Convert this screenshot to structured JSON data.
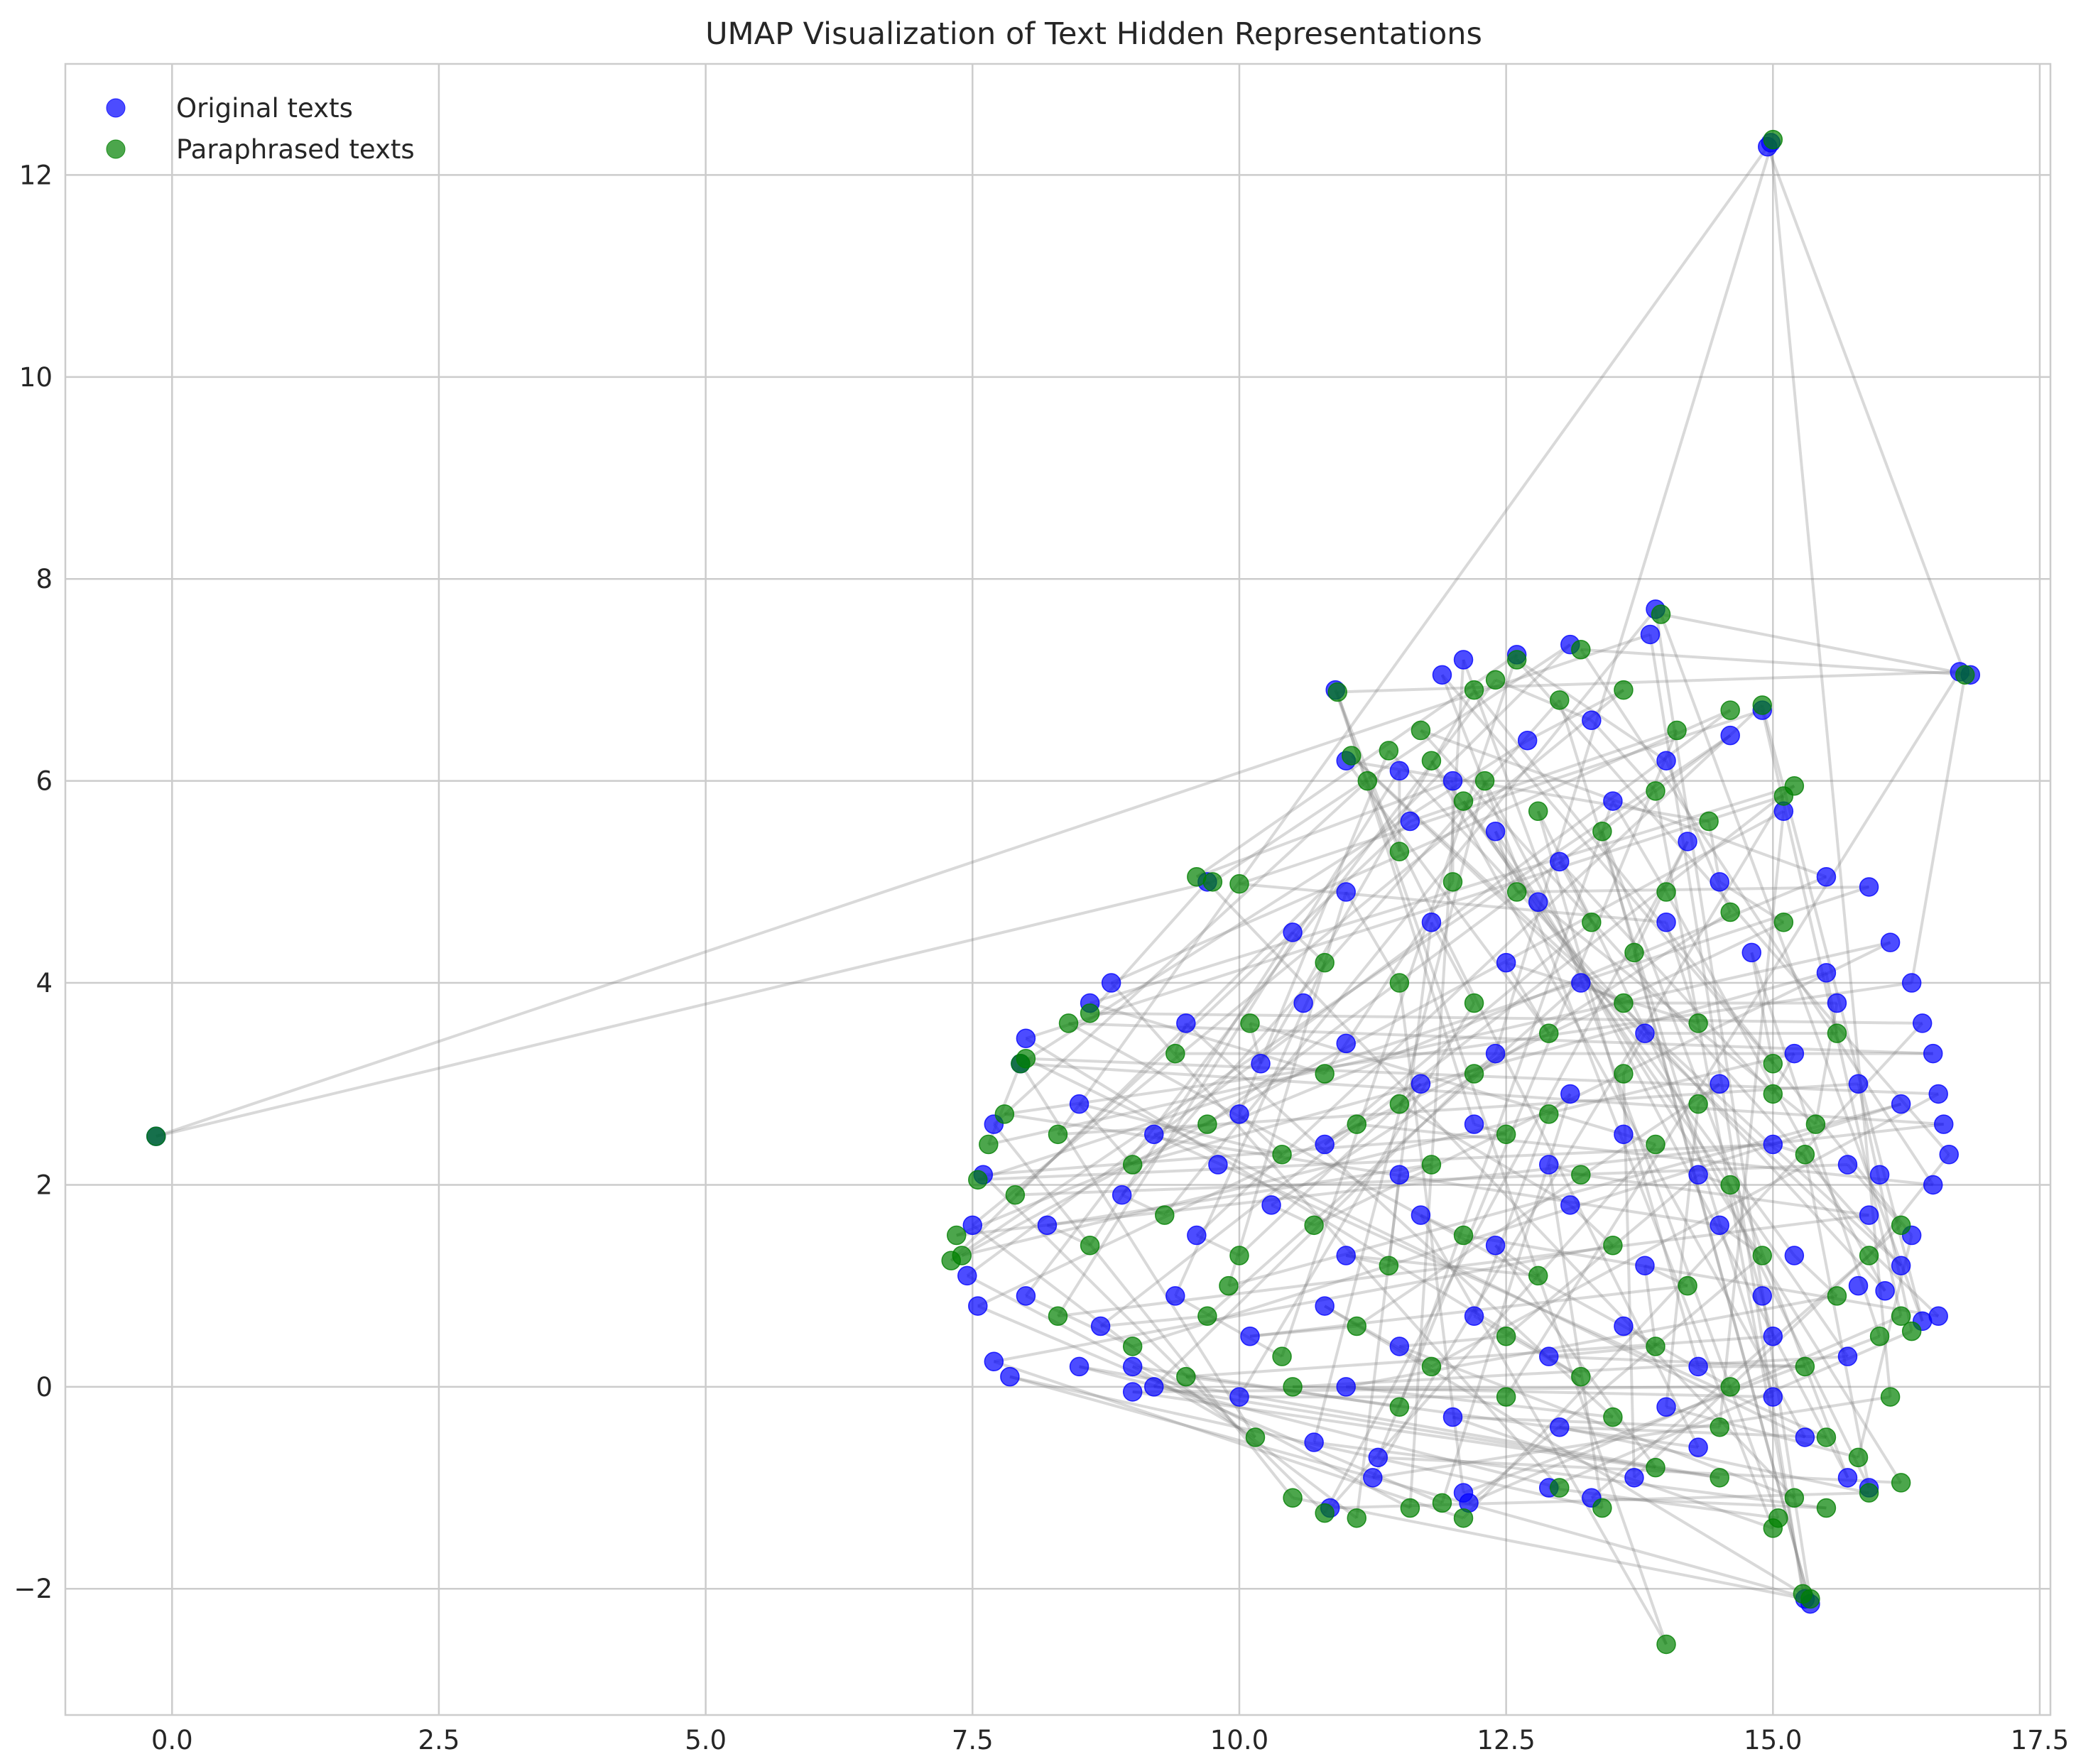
{
  "chart_data": {
    "type": "scatter",
    "title": "UMAP Visualization of Text Hidden Representations",
    "xlabel": "",
    "ylabel": "",
    "xlim": [
      -1.0,
      17.6
    ],
    "ylim": [
      -3.25,
      13.1
    ],
    "x_ticks": [
      0.0,
      2.5,
      5.0,
      7.5,
      10.0,
      12.5,
      15.0,
      17.5
    ],
    "x_tick_labels": [
      "0.0",
      "2.5",
      "5.0",
      "7.5",
      "10.0",
      "12.5",
      "15.0",
      "17.5"
    ],
    "y_ticks": [
      -2,
      0,
      2,
      4,
      6,
      8,
      10,
      12
    ],
    "y_tick_labels": [
      "−2",
      "0",
      "2",
      "4",
      "6",
      "8",
      "10",
      "12"
    ],
    "grid": true,
    "legend_position": "top-left",
    "series": [
      {
        "name": "Original texts",
        "color": "#0000ff",
        "points": [
          [
            -0.15,
            2.48
          ],
          [
            14.98,
            12.32
          ],
          [
            14.95,
            12.28
          ],
          [
            16.75,
            7.08
          ],
          [
            16.85,
            7.05
          ],
          [
            10.9,
            6.9
          ],
          [
            13.9,
            7.7
          ],
          [
            13.85,
            7.45
          ],
          [
            12.1,
            7.2
          ],
          [
            11.9,
            7.05
          ],
          [
            12.6,
            7.25
          ],
          [
            13.1,
            7.35
          ],
          [
            14.9,
            6.7
          ],
          [
            14.6,
            6.45
          ],
          [
            15.1,
            5.7
          ],
          [
            15.5,
            5.05
          ],
          [
            15.9,
            4.95
          ],
          [
            16.1,
            4.4
          ],
          [
            16.3,
            4.0
          ],
          [
            16.4,
            3.6
          ],
          [
            16.5,
            3.3
          ],
          [
            16.55,
            2.9
          ],
          [
            16.6,
            2.6
          ],
          [
            16.65,
            2.3
          ],
          [
            16.5,
            2.0
          ],
          [
            16.3,
            1.5
          ],
          [
            16.2,
            1.2
          ],
          [
            16.05,
            0.95
          ],
          [
            16.55,
            0.7
          ],
          [
            16.4,
            0.65
          ],
          [
            8.8,
            4.0
          ],
          [
            8.6,
            3.8
          ],
          [
            8.0,
            3.45
          ],
          [
            7.95,
            3.2
          ],
          [
            7.7,
            2.6
          ],
          [
            7.6,
            2.1
          ],
          [
            7.5,
            1.6
          ],
          [
            7.45,
            1.1
          ],
          [
            7.55,
            0.8
          ],
          [
            7.7,
            0.25
          ],
          [
            7.85,
            0.1
          ],
          [
            8.5,
            0.2
          ],
          [
            9.2,
            0.0
          ],
          [
            9.0,
            -0.05
          ],
          [
            9.7,
            5.0
          ],
          [
            10.7,
            -0.55
          ],
          [
            10.85,
            -1.2
          ],
          [
            11.3,
            -0.7
          ],
          [
            11.25,
            -0.9
          ],
          [
            12.1,
            -1.05
          ],
          [
            12.15,
            -1.15
          ],
          [
            12.9,
            -1.0
          ],
          [
            13.3,
            -1.1
          ],
          [
            13.7,
            -0.9
          ],
          [
            14.3,
            -0.6
          ],
          [
            15.3,
            -0.5
          ],
          [
            15.7,
            -0.9
          ],
          [
            15.9,
            -1.0
          ],
          [
            15.35,
            -2.15
          ],
          [
            15.3,
            -2.1
          ],
          [
            11.0,
            6.2
          ],
          [
            11.5,
            6.1
          ],
          [
            12.0,
            6.0
          ],
          [
            12.4,
            5.5
          ],
          [
            13.0,
            5.2
          ],
          [
            13.5,
            5.8
          ],
          [
            14.0,
            6.2
          ],
          [
            14.5,
            5.0
          ],
          [
            10.5,
            4.5
          ],
          [
            11.0,
            4.9
          ],
          [
            11.8,
            4.6
          ],
          [
            12.5,
            4.2
          ],
          [
            13.2,
            4.0
          ],
          [
            14.0,
            4.6
          ],
          [
            14.8,
            4.3
          ],
          [
            15.5,
            4.1
          ],
          [
            9.5,
            3.6
          ],
          [
            10.2,
            3.2
          ],
          [
            11.0,
            3.4
          ],
          [
            11.7,
            3.0
          ],
          [
            12.4,
            3.3
          ],
          [
            13.1,
            2.9
          ],
          [
            13.8,
            3.5
          ],
          [
            14.5,
            3.0
          ],
          [
            15.2,
            3.3
          ],
          [
            15.8,
            3.0
          ],
          [
            8.5,
            2.8
          ],
          [
            9.2,
            2.5
          ],
          [
            10.0,
            2.7
          ],
          [
            10.8,
            2.4
          ],
          [
            11.5,
            2.1
          ],
          [
            12.2,
            2.6
          ],
          [
            12.9,
            2.2
          ],
          [
            13.6,
            2.5
          ],
          [
            14.3,
            2.1
          ],
          [
            15.0,
            2.4
          ],
          [
            15.7,
            2.2
          ],
          [
            8.2,
            1.6
          ],
          [
            8.9,
            1.9
          ],
          [
            9.6,
            1.5
          ],
          [
            10.3,
            1.8
          ],
          [
            11.0,
            1.3
          ],
          [
            11.7,
            1.7
          ],
          [
            12.4,
            1.4
          ],
          [
            13.1,
            1.8
          ],
          [
            13.8,
            1.2
          ],
          [
            14.5,
            1.6
          ],
          [
            15.2,
            1.3
          ],
          [
            15.9,
            1.7
          ],
          [
            8.0,
            0.9
          ],
          [
            8.7,
            0.6
          ],
          [
            9.4,
            0.9
          ],
          [
            10.1,
            0.5
          ],
          [
            10.8,
            0.8
          ],
          [
            11.5,
            0.4
          ],
          [
            12.2,
            0.7
          ],
          [
            12.9,
            0.3
          ],
          [
            13.6,
            0.6
          ],
          [
            14.3,
            0.2
          ],
          [
            15.0,
            0.5
          ],
          [
            15.7,
            0.3
          ],
          [
            9.0,
            0.2
          ],
          [
            10.0,
            -0.1
          ],
          [
            11.0,
            0.0
          ],
          [
            12.0,
            -0.3
          ],
          [
            13.0,
            -0.4
          ],
          [
            14.0,
            -0.2
          ],
          [
            15.0,
            -0.1
          ],
          [
            12.7,
            6.4
          ],
          [
            13.3,
            6.6
          ],
          [
            11.6,
            5.6
          ],
          [
            12.8,
            4.8
          ],
          [
            14.2,
            5.4
          ],
          [
            15.6,
            3.8
          ],
          [
            16.2,
            2.8
          ],
          [
            16.0,
            2.1
          ],
          [
            15.8,
            1.0
          ],
          [
            10.6,
            3.8
          ],
          [
            9.8,
            2.2
          ],
          [
            14.9,
            0.9
          ]
        ]
      },
      {
        "name": "Paraphrased texts",
        "color": "#008000",
        "points": [
          [
            -0.15,
            2.48
          ],
          [
            15.0,
            12.35
          ],
          [
            16.8,
            7.05
          ],
          [
            10.92,
            6.88
          ],
          [
            13.95,
            7.65
          ],
          [
            14.0,
            -2.55
          ],
          [
            15.35,
            -2.1
          ],
          [
            15.28,
            -2.05
          ],
          [
            15.05,
            -1.3
          ],
          [
            15.0,
            -1.4
          ],
          [
            9.6,
            5.05
          ],
          [
            9.75,
            5.0
          ],
          [
            10.0,
            4.98
          ],
          [
            7.3,
            1.25
          ],
          [
            7.4,
            1.3
          ],
          [
            7.35,
            1.5
          ],
          [
            7.55,
            2.05
          ],
          [
            7.65,
            2.4
          ],
          [
            7.8,
            2.7
          ],
          [
            8.6,
            3.7
          ],
          [
            8.4,
            3.6
          ],
          [
            8.0,
            3.25
          ],
          [
            7.95,
            3.2
          ],
          [
            12.6,
            7.2
          ],
          [
            13.2,
            7.3
          ],
          [
            12.2,
            6.9
          ],
          [
            11.7,
            6.5
          ],
          [
            11.4,
            6.3
          ],
          [
            11.05,
            6.25
          ],
          [
            14.9,
            6.75
          ],
          [
            14.6,
            6.7
          ],
          [
            15.2,
            5.95
          ],
          [
            15.1,
            5.85
          ],
          [
            10.15,
            -0.5
          ],
          [
            10.5,
            -1.1
          ],
          [
            10.8,
            -1.25
          ],
          [
            11.1,
            -1.3
          ],
          [
            11.6,
            -1.2
          ],
          [
            11.9,
            -1.15
          ],
          [
            12.1,
            -1.3
          ],
          [
            13.4,
            -1.2
          ],
          [
            13.0,
            -1.0
          ],
          [
            13.9,
            -0.8
          ],
          [
            14.5,
            -0.9
          ],
          [
            15.2,
            -1.1
          ],
          [
            15.5,
            -1.2
          ],
          [
            15.9,
            -1.05
          ],
          [
            16.2,
            -0.95
          ],
          [
            16.1,
            -0.1
          ],
          [
            16.0,
            0.5
          ],
          [
            16.2,
            0.7
          ],
          [
            16.3,
            0.55
          ],
          [
            15.9,
            1.3
          ],
          [
            16.2,
            1.6
          ],
          [
            11.2,
            6.0
          ],
          [
            11.8,
            6.2
          ],
          [
            12.3,
            6.0
          ],
          [
            12.8,
            5.7
          ],
          [
            13.4,
            5.5
          ],
          [
            13.9,
            5.9
          ],
          [
            14.4,
            5.6
          ],
          [
            11.5,
            5.3
          ],
          [
            12.0,
            5.0
          ],
          [
            12.6,
            4.9
          ],
          [
            13.3,
            4.6
          ],
          [
            14.0,
            4.9
          ],
          [
            14.6,
            4.7
          ],
          [
            15.1,
            4.6
          ],
          [
            10.8,
            4.2
          ],
          [
            11.5,
            4.0
          ],
          [
            12.2,
            3.8
          ],
          [
            12.9,
            3.5
          ],
          [
            13.6,
            3.8
          ],
          [
            14.3,
            3.6
          ],
          [
            15.0,
            3.2
          ],
          [
            15.6,
            3.5
          ],
          [
            9.4,
            3.3
          ],
          [
            10.1,
            3.6
          ],
          [
            10.8,
            3.1
          ],
          [
            11.5,
            2.8
          ],
          [
            12.2,
            3.1
          ],
          [
            12.9,
            2.7
          ],
          [
            13.6,
            3.1
          ],
          [
            14.3,
            2.8
          ],
          [
            15.0,
            2.9
          ],
          [
            8.3,
            2.5
          ],
          [
            9.0,
            2.2
          ],
          [
            9.7,
            2.6
          ],
          [
            10.4,
            2.3
          ],
          [
            11.1,
            2.6
          ],
          [
            11.8,
            2.2
          ],
          [
            12.5,
            2.5
          ],
          [
            13.2,
            2.1
          ],
          [
            13.9,
            2.4
          ],
          [
            14.6,
            2.0
          ],
          [
            15.3,
            2.3
          ],
          [
            7.9,
            1.9
          ],
          [
            8.6,
            1.4
          ],
          [
            9.3,
            1.7
          ],
          [
            10.0,
            1.3
          ],
          [
            10.7,
            1.6
          ],
          [
            11.4,
            1.2
          ],
          [
            12.1,
            1.5
          ],
          [
            12.8,
            1.1
          ],
          [
            13.5,
            1.4
          ],
          [
            14.2,
            1.0
          ],
          [
            14.9,
            1.3
          ],
          [
            15.6,
            0.9
          ],
          [
            8.3,
            0.7
          ],
          [
            9.0,
            0.4
          ],
          [
            9.7,
            0.7
          ],
          [
            10.4,
            0.3
          ],
          [
            11.1,
            0.6
          ],
          [
            11.8,
            0.2
          ],
          [
            12.5,
            0.5
          ],
          [
            13.2,
            0.1
          ],
          [
            13.9,
            0.4
          ],
          [
            14.6,
            0.0
          ],
          [
            15.3,
            0.2
          ],
          [
            9.5,
            0.1
          ],
          [
            10.5,
            0.0
          ],
          [
            11.5,
            -0.2
          ],
          [
            12.5,
            -0.1
          ],
          [
            13.5,
            -0.3
          ],
          [
            14.5,
            -0.4
          ],
          [
            15.5,
            -0.5
          ],
          [
            15.8,
            -0.7
          ],
          [
            13.0,
            6.8
          ],
          [
            13.6,
            6.9
          ],
          [
            12.4,
            7.0
          ],
          [
            14.1,
            6.5
          ],
          [
            12.1,
            5.8
          ],
          [
            13.7,
            4.3
          ],
          [
            15.4,
            2.6
          ],
          [
            9.9,
            1.0
          ]
        ]
      }
    ],
    "connector_color": "#808080"
  },
  "legend": {
    "items": [
      {
        "label": "Original texts",
        "color": "#0000ff"
      },
      {
        "label": "Paraphrased texts",
        "color": "#008000"
      }
    ]
  }
}
